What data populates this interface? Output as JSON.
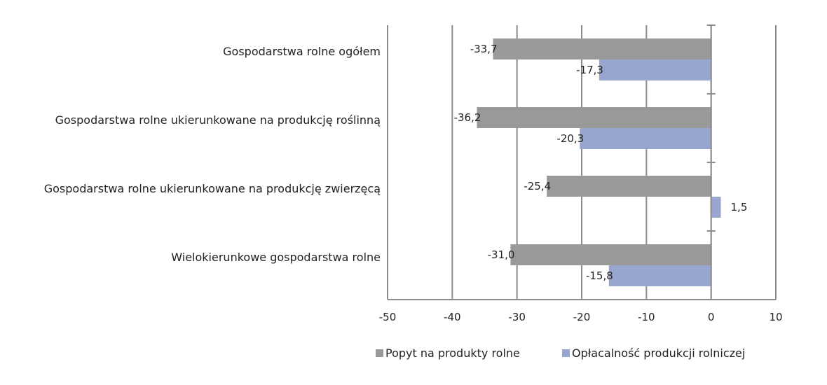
{
  "chart_data": {
    "type": "bar",
    "orientation": "horizontal",
    "categories": [
      "Gospodarstwa rolne ogółem",
      "Gospodarstwa rolne ukierunkowane na produkcję roślinną",
      "Gospodarstwa rolne ukierunkowane na produkcję zwierzęcą",
      "Wielokierunkowe gospodarstwa rolne"
    ],
    "series": [
      {
        "name": "Popyt na produkty rolne",
        "color": "#999999",
        "values": [
          -33.7,
          -36.2,
          -25.4,
          -31.0
        ],
        "labels": [
          "-33,7",
          "-36,2",
          "-25,4",
          "-31,0"
        ]
      },
      {
        "name": "Opłacalność produkcji rolniczej",
        "color": "#98a6cf",
        "values": [
          -17.3,
          -20.3,
          1.5,
          -15.8
        ],
        "labels": [
          "-17,3",
          "-20,3",
          "1,5",
          "-15,8"
        ]
      }
    ],
    "xlim": [
      -50,
      10
    ],
    "xticks": [
      -50,
      -40,
      -30,
      -20,
      -10,
      0,
      10
    ],
    "xtick_labels": [
      "-50",
      "-40",
      "-30",
      "-20",
      "-10",
      "0",
      "10"
    ],
    "grid": "vertical",
    "legend": "bottom",
    "title": "",
    "xlabel": "",
    "ylabel": ""
  }
}
